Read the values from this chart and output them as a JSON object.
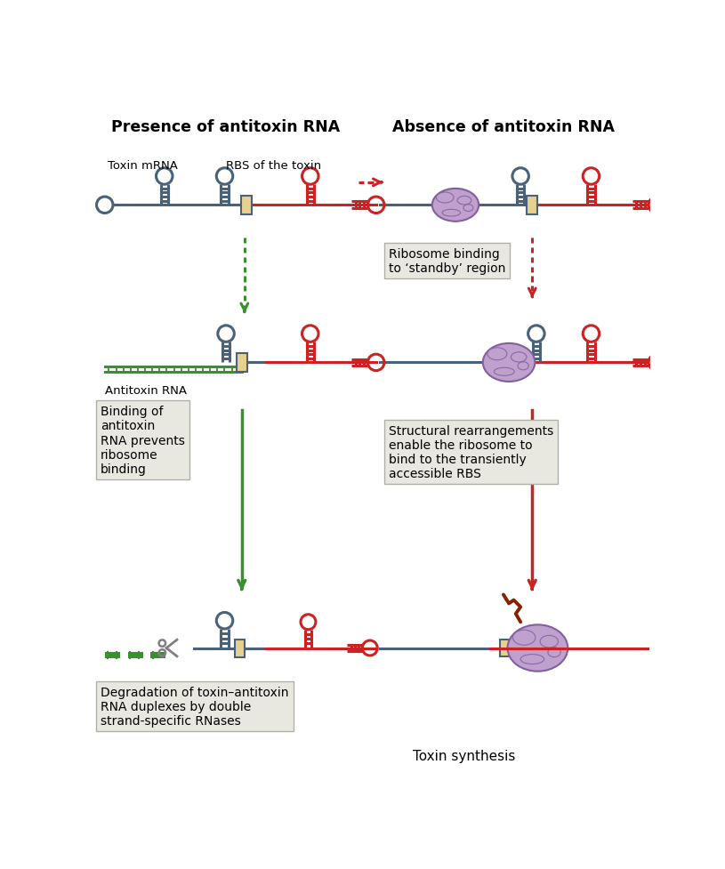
{
  "title_left": "Presence of antitoxin RNA",
  "title_right": "Absence of antitoxin RNA",
  "label_toxin_mrna": "Toxin mRNA",
  "label_rbs": "RBS of the toxin",
  "label_antitoxin": "Antitoxin RNA",
  "label_ribosome_binding": "Ribosome binding\nto ‘standby’ region",
  "label_binding_prevents": "Binding of\nantitoxin\nRNA prevents\nribosome\nbinding",
  "label_structural": "Structural rearrangements\nenable the ribosome to\nbind to the transiently\naccessible RBS",
  "label_degradation": "Degradation of toxin–antitoxin\nRNA duplexes by double\nstrand-specific RNases",
  "label_toxin_synthesis": "Toxin synthesis",
  "color_blue": "#4a6278",
  "color_red": "#cc2222",
  "color_green": "#3a9030",
  "color_yellow": "#e8d090",
  "color_purple_fill": "#c0a0cc",
  "color_purple_edge": "#8060a0",
  "color_bg": "#ffffff",
  "color_box_bg": "#e8e8e0",
  "color_box_edge": "#b0b0a8"
}
